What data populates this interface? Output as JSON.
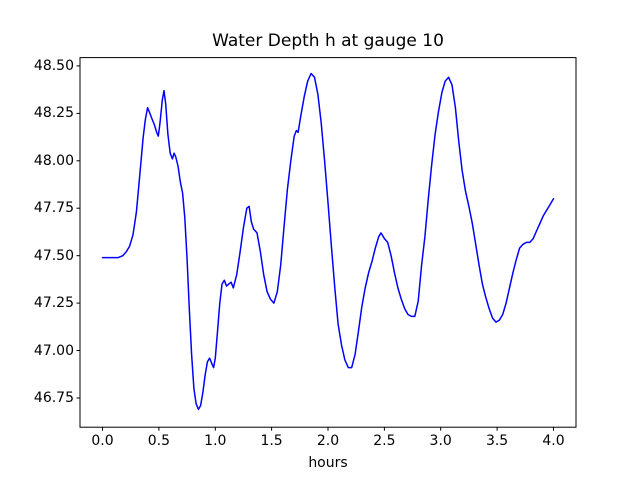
{
  "figure": {
    "background": "#ffffff",
    "title": "Water Depth h at gauge 10",
    "xlabel": "hours"
  },
  "chart_data": {
    "type": "line",
    "title": "Water Depth h at gauge 10",
    "xlabel": "hours",
    "ylabel": "",
    "grid": false,
    "legend": "none",
    "line_color": "#0000ff",
    "line_width": 1.5,
    "axes_color": "#000000",
    "xlim": [
      -0.2,
      4.2
    ],
    "ylim": [
      46.596,
      48.544
    ],
    "x_ticks": [
      0.0,
      0.5,
      1.0,
      1.5,
      2.0,
      2.5,
      3.0,
      3.5,
      4.0
    ],
    "x_tick_labels": [
      "0.0",
      "0.5",
      "1.0",
      "1.5",
      "2.0",
      "2.5",
      "3.0",
      "3.5",
      "4.0"
    ],
    "y_ticks": [
      46.75,
      47.0,
      47.25,
      47.5,
      47.75,
      48.0,
      48.25,
      48.5
    ],
    "y_tick_labels": [
      "46.75",
      "47.00",
      "47.25",
      "47.50",
      "47.75",
      "48.00",
      "48.25",
      "48.50"
    ],
    "series": [
      {
        "name": "h",
        "x": [
          0.0,
          0.05,
          0.1,
          0.14,
          0.18,
          0.21,
          0.24,
          0.27,
          0.3,
          0.33,
          0.36,
          0.38,
          0.4,
          0.42,
          0.44,
          0.46,
          0.48,
          0.495,
          0.51,
          0.53,
          0.545,
          0.56,
          0.58,
          0.6,
          0.62,
          0.635,
          0.65,
          0.67,
          0.69,
          0.71,
          0.73,
          0.75,
          0.77,
          0.79,
          0.81,
          0.83,
          0.85,
          0.87,
          0.89,
          0.91,
          0.93,
          0.95,
          0.97,
          0.985,
          1.0,
          1.02,
          1.04,
          1.06,
          1.08,
          1.1,
          1.12,
          1.14,
          1.16,
          1.19,
          1.22,
          1.25,
          1.28,
          1.3,
          1.32,
          1.34,
          1.37,
          1.4,
          1.43,
          1.46,
          1.49,
          1.52,
          1.55,
          1.58,
          1.61,
          1.64,
          1.67,
          1.7,
          1.72,
          1.735,
          1.76,
          1.79,
          1.82,
          1.85,
          1.88,
          1.91,
          1.94,
          1.97,
          2.0,
          2.03,
          2.06,
          2.09,
          2.12,
          2.15,
          2.18,
          2.21,
          2.24,
          2.27,
          2.3,
          2.33,
          2.36,
          2.39,
          2.42,
          2.45,
          2.47,
          2.5,
          2.53,
          2.56,
          2.59,
          2.62,
          2.65,
          2.68,
          2.71,
          2.74,
          2.77,
          2.8,
          2.83,
          2.86,
          2.89,
          2.92,
          2.95,
          2.98,
          3.01,
          3.04,
          3.07,
          3.1,
          3.13,
          3.16,
          3.19,
          3.22,
          3.25,
          3.28,
          3.31,
          3.34,
          3.37,
          3.4,
          3.43,
          3.46,
          3.49,
          3.52,
          3.55,
          3.58,
          3.61,
          3.64,
          3.67,
          3.7,
          3.73,
          3.76,
          3.79,
          3.82,
          3.85,
          3.88,
          3.91,
          3.94,
          3.97,
          4.0
        ],
        "y": [
          47.49,
          47.49,
          47.49,
          47.49,
          47.5,
          47.52,
          47.55,
          47.61,
          47.73,
          47.92,
          48.12,
          48.22,
          48.28,
          48.25,
          48.22,
          48.19,
          48.15,
          48.13,
          48.2,
          48.32,
          48.37,
          48.3,
          48.14,
          48.04,
          48.01,
          48.04,
          48.02,
          47.97,
          47.89,
          47.83,
          47.7,
          47.48,
          47.22,
          46.98,
          46.8,
          46.72,
          46.69,
          46.71,
          46.78,
          46.87,
          46.94,
          46.96,
          46.93,
          46.91,
          46.96,
          47.1,
          47.25,
          47.35,
          47.37,
          47.34,
          47.35,
          47.36,
          47.33,
          47.4,
          47.52,
          47.65,
          47.75,
          47.76,
          47.68,
          47.64,
          47.62,
          47.52,
          47.4,
          47.31,
          47.27,
          47.25,
          47.31,
          47.45,
          47.65,
          47.85,
          48.0,
          48.13,
          48.16,
          48.15,
          48.24,
          48.34,
          48.42,
          48.46,
          48.44,
          48.35,
          48.2,
          48.0,
          47.78,
          47.55,
          47.33,
          47.14,
          47.03,
          46.95,
          46.91,
          46.91,
          46.98,
          47.1,
          47.23,
          47.33,
          47.41,
          47.47,
          47.54,
          47.6,
          47.62,
          47.59,
          47.57,
          47.5,
          47.41,
          47.33,
          47.27,
          47.22,
          47.19,
          47.18,
          47.18,
          47.26,
          47.45,
          47.6,
          47.8,
          47.98,
          48.14,
          48.26,
          48.36,
          48.42,
          48.44,
          48.4,
          48.28,
          48.1,
          47.95,
          47.84,
          47.76,
          47.67,
          47.56,
          47.45,
          47.35,
          47.28,
          47.22,
          47.17,
          47.15,
          47.16,
          47.19,
          47.25,
          47.33,
          47.41,
          47.48,
          47.54,
          47.56,
          47.57,
          47.57,
          47.59,
          47.63,
          47.67,
          47.71,
          47.74,
          47.77,
          47.8
        ]
      }
    ]
  }
}
